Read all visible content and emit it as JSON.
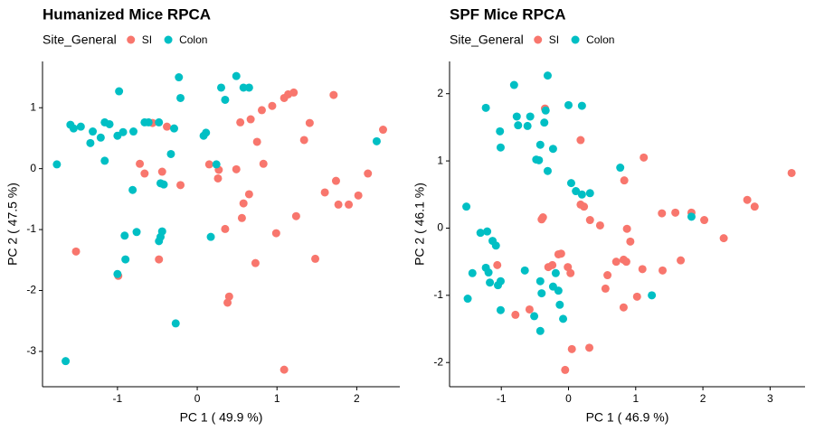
{
  "chart_data": [
    {
      "type": "scatter",
      "title": "Humanized Mice RPCA",
      "legend_title": "Site_General",
      "x_label": "PC 1 ( 49.9 %)",
      "y_label": "PC 2 ( 47.5 %)",
      "xlim": [
        -1.94,
        2.54
      ],
      "ylim": [
        -3.58,
        1.76
      ],
      "xticks": [
        -1,
        0,
        1,
        2
      ],
      "yticks": [
        -3,
        -2,
        -1,
        0,
        1
      ],
      "series": [
        {
          "name": "SI",
          "color": "#F8766D",
          "x": [
            -1.52,
            -0.99,
            -0.72,
            -0.66,
            -0.56,
            -0.44,
            -0.38,
            -0.21,
            -0.48,
            0.15,
            0.26,
            0.27,
            0.35,
            0.4,
            0.38,
            0.49,
            0.56,
            0.58,
            0.65,
            0.54,
            0.67,
            0.75,
            0.73,
            0.83,
            0.81,
            0.94,
            1.09,
            1.14,
            1.21,
            0.99,
            1.09,
            1.24,
            1.34,
            1.41,
            1.48,
            1.6,
            1.71,
            1.77,
            1.9,
            2.02,
            2.14,
            2.33,
            1.74
          ],
          "values": [
            -1.36,
            -1.76,
            0.08,
            -0.08,
            0.75,
            -0.05,
            0.69,
            -0.27,
            -1.49,
            0.07,
            -0.16,
            -0.02,
            -0.99,
            -2.1,
            -2.2,
            -0.01,
            -0.81,
            -0.57,
            -0.42,
            0.76,
            0.81,
            0.44,
            -1.55,
            0.08,
            0.96,
            1.03,
            1.16,
            1.22,
            1.25,
            -1.06,
            -3.3,
            -0.78,
            0.47,
            0.75,
            -1.48,
            -0.39,
            1.21,
            -0.59,
            -0.59,
            -0.44,
            -0.08,
            0.64,
            -0.2
          ]
        },
        {
          "name": "Colon",
          "color": "#00BFC4",
          "x": [
            -1.76,
            -1.59,
            -1.55,
            -1.46,
            -1.34,
            -1.31,
            -1.21,
            -1.16,
            -1.1,
            -1.0,
            -0.98,
            -0.93,
            -0.8,
            -0.66,
            -0.61,
            -0.48,
            -0.29,
            -0.33,
            -0.23,
            -0.21,
            0.08,
            0.11,
            0.3,
            0.35,
            0.49,
            0.58,
            0.65,
            0.24,
            -1.16,
            -0.81,
            -0.46,
            -0.42,
            -0.44,
            -0.46,
            -0.48,
            -0.76,
            -0.91,
            -0.9,
            -1.0,
            -1.65,
            -0.27,
            0.17,
            2.25
          ],
          "values": [
            0.07,
            0.72,
            0.66,
            0.69,
            0.42,
            0.61,
            0.51,
            0.76,
            0.73,
            0.54,
            1.27,
            0.6,
            0.61,
            0.76,
            0.76,
            0.76,
            0.66,
            0.24,
            1.5,
            1.16,
            0.54,
            0.59,
            1.33,
            1.13,
            1.52,
            1.33,
            1.33,
            0.07,
            0.13,
            -0.35,
            -0.24,
            -0.26,
            -1.03,
            -1.12,
            -1.19,
            -1.04,
            -1.1,
            -1.49,
            -1.73,
            -3.16,
            -2.54,
            -1.12,
            0.45
          ]
        }
      ]
    },
    {
      "type": "scatter",
      "title": "SPF Mice RPCA",
      "legend_title": "Site_General",
      "x_label": "PC 1 ( 46.9 %)",
      "y_label": "PC 2 ( 46.1 %)",
      "xlim": [
        -1.77,
        3.52
      ],
      "ylim": [
        -2.36,
        2.48
      ],
      "xticks": [
        -1,
        0,
        1,
        2,
        3
      ],
      "yticks": [
        -2,
        -1,
        0,
        1,
        2
      ],
      "series": [
        {
          "name": "SI",
          "color": "#F8766D",
          "x": [
            -1.06,
            -0.79,
            -0.58,
            -0.4,
            -0.38,
            -0.35,
            -0.3,
            -0.24,
            -0.15,
            -0.11,
            -0.05,
            -0.01,
            0.03,
            0.05,
            0.18,
            0.18,
            0.23,
            0.31,
            0.32,
            0.47,
            0.55,
            0.58,
            0.71,
            0.82,
            0.82,
            0.86,
            0.87,
            0.92,
            1.02,
            1.12,
            0.83,
            1.1,
            1.39,
            1.4,
            1.59,
            1.67,
            1.83,
            2.02,
            2.31,
            2.66,
            2.77,
            3.32
          ],
          "values": [
            -0.55,
            -1.29,
            -1.21,
            0.13,
            0.16,
            1.78,
            -0.58,
            -0.55,
            -0.39,
            -0.38,
            -2.11,
            -0.58,
            -0.67,
            -1.8,
            1.31,
            0.35,
            0.32,
            -1.78,
            0.12,
            0.04,
            -0.9,
            -0.7,
            -0.5,
            -1.18,
            -0.47,
            -0.5,
            -0.01,
            -0.2,
            -1.02,
            1.05,
            0.71,
            -0.61,
            0.22,
            -0.63,
            0.23,
            -0.48,
            0.23,
            0.12,
            -0.15,
            0.42,
            0.32,
            0.82
          ]
        },
        {
          "name": "Colon",
          "color": "#00BFC4",
          "x": [
            -1.52,
            -1.5,
            -1.43,
            -1.31,
            -1.23,
            -1.21,
            -1.19,
            -1.17,
            -1.13,
            -1.08,
            -1.05,
            -1.01,
            -1.23,
            -1.02,
            -1.01,
            -0.81,
            -0.77,
            -0.75,
            -0.61,
            -0.57,
            -0.65,
            -1.01,
            -0.51,
            -0.48,
            -0.44,
            -0.42,
            -0.42,
            -0.4,
            -0.34,
            -0.36,
            -0.31,
            -0.31,
            -0.23,
            -0.23,
            -0.19,
            -0.15,
            -0.13,
            -0.08,
            0,
            0.04,
            0.11,
            0.2,
            0.2,
            0.32,
            0.77,
            1.24,
            1.83,
            -0.42
          ],
          "values": [
            0.32,
            -1.05,
            -0.67,
            -0.07,
            -0.59,
            -0.05,
            -0.66,
            -0.81,
            -0.19,
            -0.26,
            -0.85,
            -0.79,
            1.79,
            1.44,
            1.2,
            2.13,
            1.66,
            1.53,
            1.52,
            1.66,
            -0.63,
            -1.22,
            -1.31,
            1.02,
            1.01,
            1.24,
            -0.79,
            -0.97,
            1.75,
            1.57,
            2.27,
            0.85,
            1.18,
            -0.87,
            -0.67,
            -0.93,
            -1.14,
            -1.35,
            1.83,
            0.67,
            0.55,
            1.82,
            0.5,
            0.52,
            0.9,
            -1.0,
            0.17,
            -1.53
          ]
        }
      ]
    }
  ]
}
